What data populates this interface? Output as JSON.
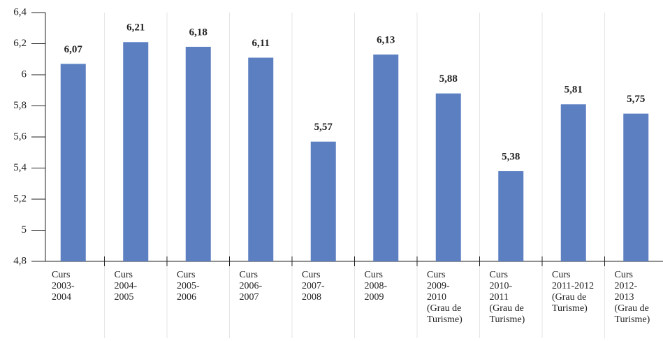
{
  "chart_data": {
    "type": "bar",
    "categories": [
      "Curs\n2003-\n2004",
      "Curs\n2004-\n2005",
      "Curs\n2005-\n2006",
      "Curs\n2006-\n2007",
      "Curs\n2007-\n2008",
      "Curs\n2008-\n2009",
      "Curs\n2009-\n2010\n(Grau de\nTurisme)",
      "Curs\n2010-\n2011\n(Grau de\nTurisme)",
      "Curs\n2011-2012\n(Grau de\nTurisme)",
      "Curs\n2012-\n2013\n(Grau de\nTurisme)"
    ],
    "values": [
      6.07,
      6.21,
      6.18,
      6.11,
      5.57,
      6.13,
      5.88,
      5.38,
      5.81,
      5.75
    ],
    "value_labels": [
      "6,07",
      "6,21",
      "6,18",
      "6,11",
      "5,57",
      "6,13",
      "5,88",
      "5,38",
      "5,81",
      "5,75"
    ],
    "color": "#5b7fc1",
    "ylim": [
      4.8,
      6.4
    ],
    "yticks": [
      {
        "value": 4.8,
        "label": "4,8"
      },
      5,
      {
        "value": 5.2,
        "label": "5,2"
      },
      {
        "value": 5.4,
        "label": "5,4"
      },
      {
        "value": 5.6,
        "label": "5,6"
      },
      {
        "value": 5.8,
        "label": "5,8"
      },
      6,
      {
        "value": 6.2,
        "label": "6,2"
      },
      {
        "value": 6.4,
        "label": "6,4"
      }
    ],
    "grid": false
  }
}
